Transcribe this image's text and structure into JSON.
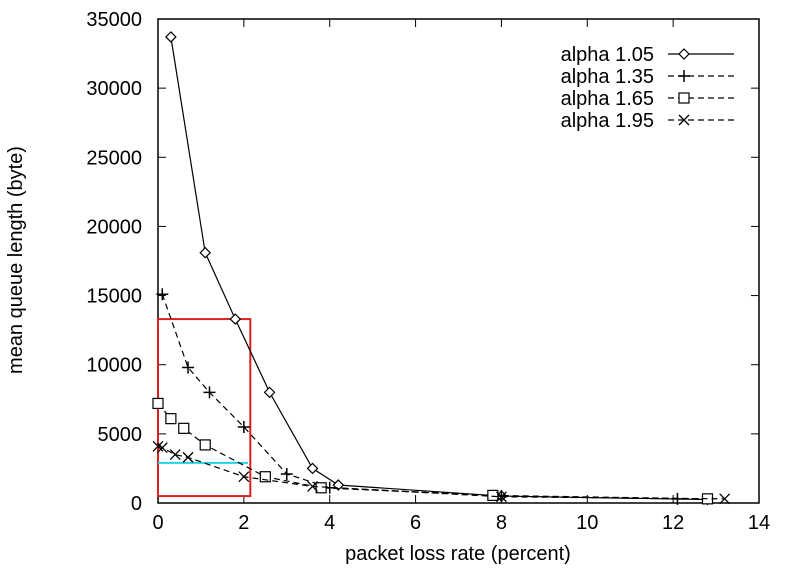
{
  "chart_data": {
    "type": "line",
    "title": "",
    "xlabel": "packet loss rate (percent)",
    "ylabel": "mean queue length (byte)",
    "xlim": [
      0,
      14
    ],
    "ylim": [
      0,
      35000
    ],
    "x_ticks": [
      "0",
      "2",
      "4",
      "6",
      "8",
      "10",
      "12",
      "14"
    ],
    "y_ticks": [
      "0",
      "5000",
      "10000",
      "15000",
      "20000",
      "25000",
      "30000",
      "35000"
    ],
    "grid": false,
    "legend_position": "top-right",
    "series": [
      {
        "name": "alpha 1.05",
        "marker": "diamond",
        "line_style": "solid",
        "points": [
          [
            0.3,
            33700
          ],
          [
            1.1,
            18100
          ],
          [
            1.8,
            13300
          ],
          [
            2.6,
            8000
          ],
          [
            3.6,
            2500
          ],
          [
            4.2,
            1300
          ],
          [
            8.0,
            500
          ],
          [
            12.8,
            250
          ]
        ]
      },
      {
        "name": "alpha 1.35",
        "marker": "plus",
        "line_style": "dashed",
        "points": [
          [
            0.1,
            15100
          ],
          [
            0.7,
            9800
          ],
          [
            1.2,
            8000
          ],
          [
            2.0,
            5500
          ],
          [
            3.0,
            2100
          ],
          [
            4.0,
            1100
          ],
          [
            8.0,
            500
          ],
          [
            12.1,
            300
          ]
        ]
      },
      {
        "name": "alpha 1.65",
        "marker": "square",
        "line_style": "dashed",
        "points": [
          [
            0.0,
            7200
          ],
          [
            0.3,
            6100
          ],
          [
            0.6,
            5400
          ],
          [
            1.1,
            4200
          ],
          [
            2.5,
            1900
          ],
          [
            3.8,
            1100
          ],
          [
            7.8,
            550
          ],
          [
            12.8,
            300
          ]
        ]
      },
      {
        "name": "alpha 1.95",
        "marker": "cross",
        "line_style": "dashed",
        "points": [
          [
            0.0,
            4100
          ],
          [
            0.1,
            4000
          ],
          [
            0.4,
            3500
          ],
          [
            0.7,
            3300
          ],
          [
            2.0,
            1900
          ],
          [
            3.6,
            1200
          ],
          [
            8.0,
            450
          ],
          [
            13.2,
            300
          ]
        ]
      }
    ],
    "annotations": [
      {
        "kind": "rectangle",
        "color": "#e02020",
        "x_range": [
          0,
          2.15
        ],
        "y_range": [
          500,
          13300
        ]
      },
      {
        "kind": "horizontal-line",
        "color": "#22d3e6",
        "x_range": [
          0,
          2.1
        ],
        "y": 2900
      }
    ]
  }
}
